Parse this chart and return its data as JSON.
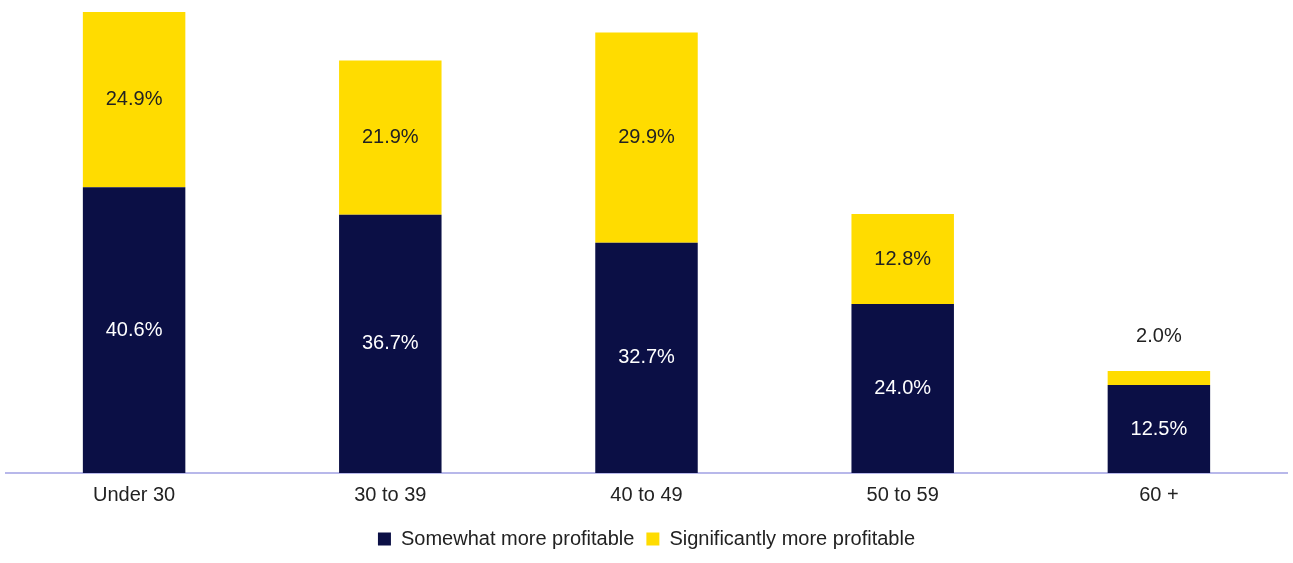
{
  "chart_data": {
    "type": "bar",
    "stacked": true,
    "categories": [
      "Under 30",
      "30 to 39",
      "40 to 49",
      "50 to 59",
      "60 +"
    ],
    "series": [
      {
        "name": "Somewhat more profitable",
        "color": "#0b0f45",
        "values": [
          40.6,
          36.7,
          32.7,
          24.0,
          12.5
        ],
        "value_labels": [
          "40.6%",
          "36.7%",
          "32.7%",
          "24.0%",
          "12.5%"
        ]
      },
      {
        "name": "Significantly more profitable",
        "color": "#ffdc00",
        "values": [
          24.9,
          21.9,
          29.9,
          12.8,
          2.0
        ],
        "value_labels": [
          "24.9%",
          "21.9%",
          "29.9%",
          "12.8%",
          "2.0%"
        ]
      }
    ],
    "legend": "bottom"
  }
}
